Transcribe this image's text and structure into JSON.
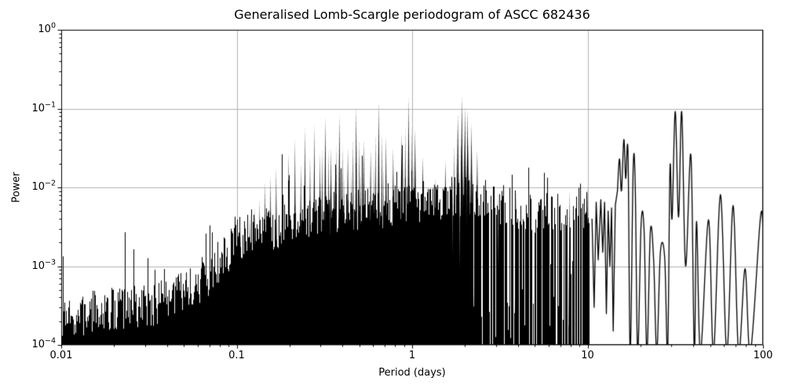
{
  "figure": {
    "background": "#ffffff"
  },
  "chart_data": {
    "type": "line",
    "title": "Generalised Lomb-Scargle periodogram of ASCC 682436",
    "xlabel": "Period (days)",
    "ylabel": "Power",
    "xscale": "log",
    "yscale": "log",
    "xlim": [
      0.01,
      100
    ],
    "ylim": [
      0.0001,
      1
    ],
    "grid": true,
    "legend": "none",
    "line_color": "#000000",
    "grid_color": "#b2b2b2",
    "spine_color": "#000000",
    "x_ticks": [
      {
        "value": 0.01,
        "label": "0.01"
      },
      {
        "value": 0.1,
        "label": "0.1"
      },
      {
        "value": 1,
        "label": "1"
      },
      {
        "value": 10,
        "label": "10"
      },
      {
        "value": 100,
        "label": "100"
      }
    ],
    "y_ticks": [
      {
        "value": 1,
        "base": "10",
        "exp": "0"
      },
      {
        "value": 0.1,
        "base": "10",
        "exp": "−1"
      },
      {
        "value": 0.01,
        "base": "10",
        "exp": "−2"
      },
      {
        "value": 0.001,
        "base": "10",
        "exp": "−3"
      },
      {
        "value": 0.0001,
        "base": "10",
        "exp": "−4"
      }
    ],
    "description": "Dense black periodogram: noise mass rising from 1e-4 at P=0.01 d, daily-alias peak comb between 0.1 and 2.5 d (strongest peaks ~0.14 at P≈0.95 d and P≈1.9 d), spiky noise 2.5–10 d, and smooth sinc-like lobes 10–100 d with a double peak ~0.09 at P≈31.6/34.4 d.",
    "noise_envelope": [
      [
        0.01,
        0.00018
      ],
      [
        0.015,
        0.00026
      ],
      [
        0.022,
        0.0003
      ],
      [
        0.033,
        0.00032
      ],
      [
        0.05,
        0.00045
      ],
      [
        0.07,
        0.0007
      ],
      [
        0.1,
        0.0022
      ],
      [
        0.14,
        0.0028
      ],
      [
        0.2,
        0.0035
      ],
      [
        0.3,
        0.0045
      ],
      [
        0.45,
        0.005
      ],
      [
        0.65,
        0.0055
      ],
      [
        0.9,
        0.006
      ],
      [
        1.3,
        0.007
      ],
      [
        1.8,
        0.008
      ],
      [
        2.4,
        0.007
      ],
      [
        3.5,
        0.0055
      ],
      [
        5.0,
        0.0045
      ],
      [
        7.0,
        0.005
      ],
      [
        9.0,
        0.006
      ],
      [
        10.2,
        0.005
      ]
    ],
    "peaks": [
      [
        0.105,
        0.0028
      ],
      [
        0.112,
        0.0035
      ],
      [
        0.119,
        0.0046
      ],
      [
        0.127,
        0.0055
      ],
      [
        0.135,
        0.007
      ],
      [
        0.145,
        0.012
      ],
      [
        0.156,
        0.014
      ],
      [
        0.168,
        0.018
      ],
      [
        0.182,
        0.024
      ],
      [
        0.198,
        0.028
      ],
      [
        0.215,
        0.042
      ],
      [
        0.232,
        0.02
      ],
      [
        0.245,
        0.058
      ],
      [
        0.262,
        0.024
      ],
      [
        0.277,
        0.063
      ],
      [
        0.298,
        0.028
      ],
      [
        0.32,
        0.077
      ],
      [
        0.345,
        0.032
      ],
      [
        0.385,
        0.085
      ],
      [
        0.43,
        0.032
      ],
      [
        0.48,
        0.105
      ],
      [
        0.53,
        0.04
      ],
      [
        0.58,
        0.03
      ],
      [
        0.645,
        0.122
      ],
      [
        0.71,
        0.045
      ],
      [
        0.78,
        0.032
      ],
      [
        0.87,
        0.05
      ],
      [
        0.955,
        0.143
      ],
      [
        1.04,
        0.055
      ],
      [
        1.15,
        0.025
      ],
      [
        1.35,
        0.013
      ],
      [
        1.55,
        0.022
      ],
      [
        1.82,
        0.088
      ],
      [
        1.92,
        0.147
      ],
      [
        2.0,
        0.105
      ],
      [
        2.07,
        0.097
      ],
      [
        2.18,
        0.065
      ],
      [
        2.35,
        0.03
      ],
      [
        3.1,
        0.009
      ],
      [
        3.9,
        0.0085
      ],
      [
        7.9,
        0.0095
      ],
      [
        10.0,
        0.0105
      ]
    ],
    "smooth_tail": [
      [
        10.6,
        0.004
      ],
      [
        10.9,
        0.0003
      ],
      [
        11.2,
        0.0065
      ],
      [
        11.5,
        0.0012
      ],
      [
        11.9,
        0.007
      ],
      [
        12.2,
        0.0015
      ],
      [
        12.5,
        0.0065
      ],
      [
        12.8,
        0.00025
      ],
      [
        13.1,
        0.005
      ],
      [
        13.4,
        0.001
      ],
      [
        13.7,
        0.0055
      ],
      [
        14.0,
        0.00015
      ],
      [
        14.4,
        0.006
      ],
      [
        14.8,
        0.009
      ],
      [
        15.2,
        0.023
      ],
      [
        15.6,
        0.009
      ],
      [
        16.1,
        0.0405
      ],
      [
        16.5,
        0.013
      ],
      [
        17.0,
        0.028
      ],
      [
        17.5,
        8e-05
      ],
      [
        18.2,
        0.018
      ],
      [
        18.7,
        0.01
      ],
      [
        19.3,
        8e-05
      ],
      [
        20.2,
        0.0035
      ],
      [
        21.0,
        0.0028
      ],
      [
        21.8,
        8e-05
      ],
      [
        22.8,
        0.0028
      ],
      [
        23.8,
        0.0012
      ],
      [
        24.8,
        8e-05
      ],
      [
        26.0,
        0.0015
      ],
      [
        27.5,
        0.0013
      ],
      [
        28.6,
        8e-05
      ],
      [
        29.5,
        0.018
      ],
      [
        30.3,
        0.004
      ],
      [
        31.6,
        0.092
      ],
      [
        33.0,
        0.0042
      ],
      [
        34.4,
        0.092
      ],
      [
        36.2,
        0.001
      ],
      [
        38.8,
        0.026
      ],
      [
        40.6,
        8e-05
      ],
      [
        41.8,
        0.0037
      ],
      [
        44.0,
        8e-05
      ],
      [
        48.9,
        0.0039
      ],
      [
        52.2,
        8e-05
      ],
      [
        57.2,
        0.0081
      ],
      [
        62.2,
        8e-05
      ],
      [
        67.5,
        0.0059
      ],
      [
        72.6,
        8e-05
      ],
      [
        79.0,
        0.00093
      ],
      [
        84.7,
        8e-05
      ],
      [
        96.6,
        0.0041
      ],
      [
        100.0,
        0.0028
      ]
    ],
    "noise_seed": 7
  }
}
